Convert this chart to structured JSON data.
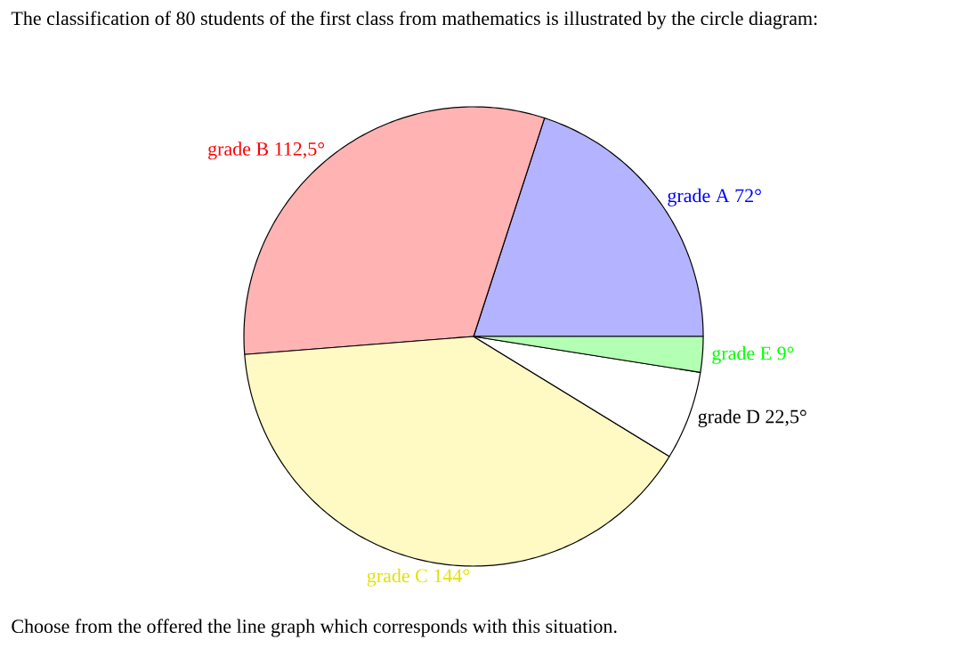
{
  "chart_data": {
    "type": "pie",
    "title": "The classification of 80 students of the first class from mathematics is illustrated by the circle diagram:",
    "annotations": [
      "Choose from the offered the line graph which corresponds with this situation."
    ],
    "categories": [
      "grade A",
      "grade B",
      "grade C",
      "grade D",
      "grade E"
    ],
    "values": [
      72,
      112.5,
      144,
      22.5,
      9
    ],
    "value_labels": [
      "72°",
      "112,5°",
      "144°",
      "22,5°",
      "9°"
    ],
    "colors": [
      "#b3b3ff",
      "#ffb3b3",
      "#fff9c4",
      "#ffffff",
      "#b3ffb3"
    ],
    "legend": false
  }
}
